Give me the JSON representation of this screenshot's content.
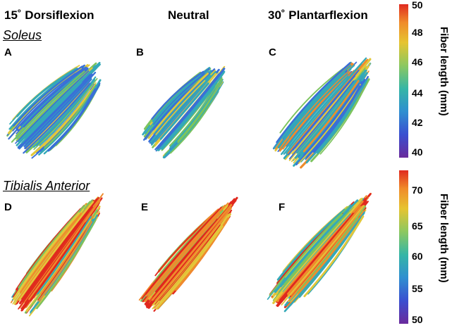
{
  "columns": {
    "dorsiflexion": "15˚ Dorsiflexion",
    "neutral": "Neutral",
    "plantarflexion": "30˚ Plantarflexion"
  },
  "sections": {
    "soleus": "Soleus",
    "tibialis": "Tibialis Anterior"
  },
  "panel_labels": {
    "a": "A",
    "b": "B",
    "c": "C",
    "d": "D",
    "e": "E",
    "f": "F"
  },
  "colorbar_soleus": {
    "title": "Fiber length (mm)",
    "ticks": [
      "50",
      "48",
      "46",
      "44",
      "42",
      "40"
    ]
  },
  "colorbar_tibialis": {
    "title": "Fiber length (mm)",
    "ticks": [
      "70",
      "65",
      "60",
      "55",
      "50"
    ]
  },
  "colors": {
    "fiber_blue": "#3a6fd8",
    "fiber_teal": "#34a9b8",
    "fiber_green": "#7cc45e",
    "fiber_yellow": "#e2c83a",
    "fiber_orange": "#ef8c2c",
    "fiber_red": "#e0281e"
  }
}
